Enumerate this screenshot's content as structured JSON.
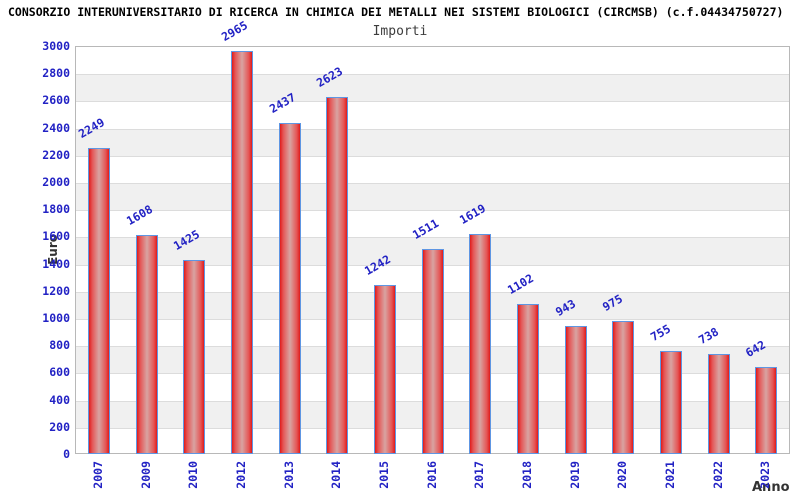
{
  "header": {
    "title": "CONSORZIO INTERUNIVERSITARIO DI RICERCA IN CHIMICA DEI METALLI NEI SISTEMI BIOLOGICI (CIRCMSB) (c.f.04434750727)",
    "subtitle": "Importi"
  },
  "chart_data": {
    "type": "bar",
    "title": "Importi",
    "categories": [
      "2007",
      "2009",
      "2010",
      "2012",
      "2013",
      "2014",
      "2015",
      "2016",
      "2017",
      "2018",
      "2019",
      "2020",
      "2021",
      "2022",
      "2023"
    ],
    "values": [
      2249,
      1608,
      1425,
      2965,
      2437,
      2623,
      1242,
      1511,
      1619,
      1102,
      943,
      975,
      755,
      738,
      642
    ],
    "xlabel": "Anno",
    "ylabel": "Euro",
    "ylim": [
      0,
      3000
    ],
    "ytick_step": 200,
    "grid": true,
    "legend": "none",
    "colors": {
      "label_blue": "#2222c4",
      "bar_edge": "#e01b1b",
      "bar_center": "#d8a4a2",
      "bar_border": "#5e96e3",
      "band_gray": "#f0f0f0",
      "gridline": "#dcdcdc",
      "plot_border": "#b8b8b8",
      "axis_title": "#333333",
      "title_color": "#000000"
    }
  }
}
